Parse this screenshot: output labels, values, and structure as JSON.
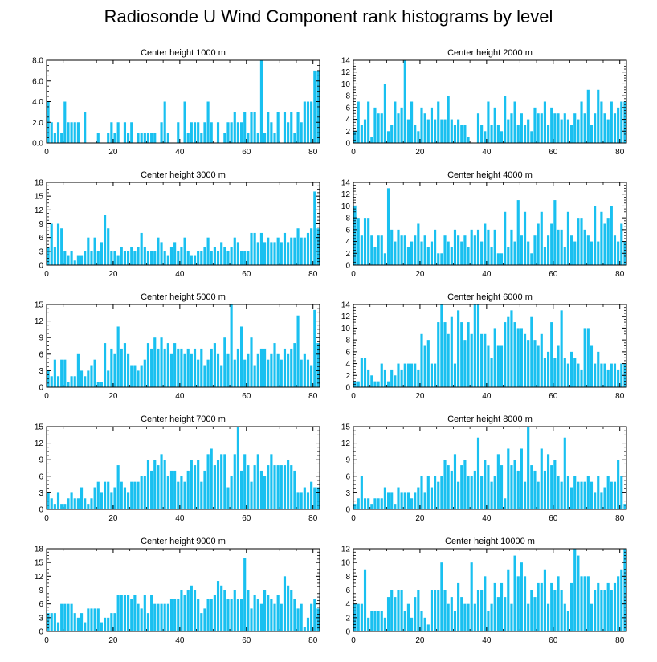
{
  "title": "Radiosonde U Wind Component rank histograms by level",
  "bar_color": "#19c0f0",
  "chart_data": [
    {
      "type": "bar",
      "title": "Center height 1000 m",
      "xlabel": "",
      "ylabel": "",
      "xlim": [
        0,
        82
      ],
      "ylim": [
        0,
        8
      ],
      "xticks": [
        "0",
        "20",
        "40",
        "60",
        "80"
      ],
      "yticks": [
        "0.0",
        "2.0",
        "4.0",
        "6.0",
        "8.0"
      ],
      "values": [
        4,
        2,
        1,
        2,
        1,
        4,
        2,
        2,
        2,
        2,
        0,
        3,
        0,
        0,
        0,
        1,
        0,
        0,
        1,
        2,
        1,
        2,
        0,
        2,
        1,
        2,
        0,
        1,
        1,
        1,
        1,
        1,
        1,
        0,
        2,
        4,
        1,
        0,
        0,
        2,
        0,
        4,
        1,
        2,
        2,
        2,
        1,
        2,
        4,
        2,
        0,
        2,
        0,
        1,
        2,
        2,
        3,
        2,
        2,
        3,
        1,
        3,
        3,
        1,
        8,
        1,
        3,
        2,
        1,
        3,
        0,
        3,
        2,
        3,
        1,
        3,
        2,
        4,
        4,
        4,
        7,
        7
      ]
    },
    {
      "type": "bar",
      "title": "Center height 2000 m",
      "xlabel": "",
      "ylabel": "",
      "xlim": [
        0,
        82
      ],
      "ylim": [
        0,
        14
      ],
      "xticks": [
        "0",
        "20",
        "40",
        "60",
        "80"
      ],
      "yticks": [
        "0",
        "2",
        "4",
        "6",
        "8",
        "10",
        "12",
        "14"
      ],
      "values": [
        2,
        7,
        3,
        4,
        7,
        1,
        6,
        5,
        5,
        10,
        2,
        3,
        7,
        5,
        6,
        14,
        4,
        7,
        3,
        2,
        6,
        5,
        4,
        6,
        4,
        7,
        4,
        4,
        8,
        4,
        3,
        4,
        3,
        3,
        1,
        0,
        0,
        5,
        3,
        2,
        7,
        3,
        6,
        3,
        2,
        8,
        4,
        5,
        7,
        3,
        5,
        3,
        4,
        2,
        6,
        5,
        5,
        7,
        3,
        6,
        5,
        5,
        4,
        5,
        4,
        3,
        5,
        4,
        7,
        5,
        9,
        3,
        5,
        9,
        7,
        5,
        4,
        7,
        5,
        6,
        7,
        7
      ]
    },
    {
      "type": "bar",
      "title": "Center height 3000 m",
      "xlabel": "",
      "ylabel": "",
      "xlim": [
        0,
        82
      ],
      "ylim": [
        0,
        18
      ],
      "xticks": [
        "0",
        "20",
        "40",
        "60",
        "80"
      ],
      "yticks": [
        "0",
        "3",
        "6",
        "9",
        "12",
        "15",
        "18"
      ],
      "values": [
        4,
        9,
        4,
        9,
        8,
        3,
        2,
        3,
        1,
        2,
        2,
        3,
        6,
        3,
        6,
        3,
        5,
        11,
        8,
        3,
        3,
        2,
        4,
        3,
        3,
        4,
        3,
        4,
        7,
        4,
        3,
        3,
        3,
        6,
        5,
        3,
        2,
        4,
        5,
        3,
        4,
        6,
        3,
        2,
        2,
        3,
        3,
        4,
        6,
        3,
        4,
        3,
        5,
        4,
        3,
        4,
        6,
        5,
        3,
        3,
        3,
        7,
        7,
        5,
        7,
        5,
        6,
        5,
        5,
        6,
        5,
        7,
        5,
        6,
        6,
        8,
        6,
        6,
        7,
        8,
        16,
        8
      ]
    },
    {
      "type": "bar",
      "title": "Center height 4000 m",
      "xlabel": "",
      "ylabel": "",
      "xlim": [
        0,
        82
      ],
      "ylim": [
        0,
        14
      ],
      "xticks": [
        "0",
        "20",
        "40",
        "60",
        "80"
      ],
      "yticks": [
        "0",
        "2",
        "4",
        "6",
        "8",
        "10",
        "12",
        "14"
      ],
      "values": [
        10,
        8,
        5,
        8,
        8,
        5,
        3,
        5,
        5,
        2,
        13,
        6,
        4,
        6,
        5,
        5,
        3,
        4,
        5,
        7,
        4,
        5,
        3,
        4,
        6,
        2,
        2,
        5,
        4,
        3,
        6,
        5,
        4,
        5,
        3,
        6,
        5,
        6,
        4,
        7,
        6,
        3,
        6,
        2,
        2,
        9,
        3,
        6,
        4,
        11,
        5,
        9,
        4,
        2,
        5,
        7,
        9,
        3,
        5,
        7,
        11,
        6,
        6,
        3,
        9,
        5,
        4,
        8,
        8,
        6,
        5,
        4,
        10,
        4,
        9,
        7,
        8,
        10,
        5,
        4,
        7,
        4
      ]
    },
    {
      "type": "bar",
      "title": "Center height 5000 m",
      "xlabel": "",
      "ylabel": "",
      "xlim": [
        0,
        82
      ],
      "ylim": [
        0,
        15
      ],
      "xticks": [
        "0",
        "20",
        "40",
        "60",
        "80"
      ],
      "yticks": [
        "0",
        "3",
        "6",
        "9",
        "12",
        "15"
      ],
      "values": [
        3,
        2,
        5,
        2,
        5,
        5,
        1,
        2,
        2,
        6,
        3,
        2,
        3,
        4,
        5,
        1,
        1,
        8,
        3,
        7,
        6,
        11,
        7,
        8,
        6,
        4,
        4,
        3,
        4,
        5,
        8,
        7,
        9,
        7,
        9,
        7,
        8,
        6,
        8,
        7,
        7,
        6,
        7,
        6,
        7,
        5,
        7,
        4,
        5,
        7,
        8,
        6,
        4,
        9,
        6,
        15,
        5,
        7,
        11,
        5,
        6,
        9,
        4,
        6,
        7,
        7,
        5,
        6,
        8,
        6,
        5,
        7,
        6,
        7,
        8,
        13,
        5,
        6,
        5,
        4,
        14,
        8
      ]
    },
    {
      "type": "bar",
      "title": "Center height 6000 m",
      "xlabel": "",
      "ylabel": "",
      "xlim": [
        0,
        82
      ],
      "ylim": [
        0,
        14
      ],
      "xticks": [
        "0",
        "20",
        "40",
        "60",
        "80"
      ],
      "yticks": [
        "0",
        "2",
        "4",
        "6",
        "8",
        "10",
        "12",
        "14"
      ],
      "values": [
        1,
        1,
        5,
        5,
        3,
        2,
        1,
        1,
        4,
        3,
        1,
        3,
        2,
        4,
        3,
        4,
        4,
        4,
        4,
        3,
        9,
        7,
        8,
        4,
        4,
        11,
        14,
        11,
        9,
        12,
        4,
        13,
        11,
        8,
        11,
        9,
        14,
        14,
        9,
        9,
        7,
        5,
        10,
        7,
        7,
        11,
        12,
        13,
        11,
        10,
        10,
        9,
        8,
        12,
        8,
        7,
        9,
        5,
        6,
        11,
        5,
        7,
        13,
        5,
        4,
        6,
        5,
        4,
        3,
        10,
        10,
        7,
        4,
        6,
        4,
        4,
        3,
        4,
        4,
        3,
        4,
        4
      ]
    },
    {
      "type": "bar",
      "title": "Center height 7000 m",
      "xlabel": "",
      "ylabel": "",
      "xlim": [
        0,
        82
      ],
      "ylim": [
        0,
        15
      ],
      "xticks": [
        "0",
        "20",
        "40",
        "60",
        "80"
      ],
      "yticks": [
        "0",
        "3",
        "6",
        "9",
        "12",
        "15"
      ],
      "values": [
        3,
        2,
        1,
        3,
        1,
        1,
        2,
        3,
        2,
        2,
        4,
        2,
        1,
        2,
        4,
        5,
        3,
        5,
        5,
        3,
        4,
        8,
        5,
        4,
        3,
        5,
        5,
        5,
        6,
        6,
        9,
        7,
        9,
        8,
        10,
        9,
        6,
        7,
        7,
        5,
        6,
        5,
        7,
        9,
        8,
        9,
        5,
        7,
        10,
        11,
        8,
        9,
        10,
        10,
        4,
        6,
        10,
        15,
        7,
        10,
        8,
        5,
        8,
        10,
        7,
        6,
        8,
        10,
        8,
        8,
        8,
        8,
        9,
        8,
        7,
        3,
        3,
        4,
        3,
        5,
        4,
        4
      ]
    },
    {
      "type": "bar",
      "title": "Center height 8000 m",
      "xlabel": "",
      "ylabel": "",
      "xlim": [
        0,
        82
      ],
      "ylim": [
        0,
        15
      ],
      "xticks": [
        "0",
        "20",
        "40",
        "60",
        "80"
      ],
      "yticks": [
        "0",
        "3",
        "6",
        "9",
        "12",
        "15"
      ],
      "values": [
        1,
        2,
        6,
        2,
        2,
        1,
        2,
        2,
        2,
        4,
        3,
        3,
        1,
        4,
        3,
        3,
        3,
        2,
        3,
        4,
        6,
        3,
        6,
        4,
        6,
        5,
        6,
        9,
        8,
        7,
        10,
        5,
        8,
        9,
        6,
        6,
        7,
        13,
        6,
        9,
        8,
        5,
        6,
        10,
        8,
        2,
        11,
        8,
        9,
        7,
        11,
        5,
        15,
        8,
        7,
        5,
        11,
        7,
        10,
        8,
        9,
        6,
        5,
        13,
        6,
        4,
        6,
        5,
        5,
        5,
        6,
        5,
        3,
        6,
        3,
        4,
        6,
        5,
        5,
        9,
        6,
        1
      ]
    },
    {
      "type": "bar",
      "title": "Center height 9000 m",
      "xlabel": "",
      "ylabel": "",
      "xlim": [
        0,
        82
      ],
      "ylim": [
        0,
        18
      ],
      "xticks": [
        "0",
        "20",
        "40",
        "60",
        "80"
      ],
      "yticks": [
        "0",
        "3",
        "6",
        "9",
        "12",
        "15",
        "18"
      ],
      "values": [
        4,
        4,
        4,
        2,
        6,
        6,
        6,
        6,
        4,
        3,
        4,
        2,
        5,
        5,
        5,
        5,
        2,
        3,
        3,
        4,
        4,
        8,
        8,
        8,
        8,
        7,
        8,
        6,
        5,
        8,
        4,
        8,
        6,
        6,
        6,
        6,
        6,
        7,
        7,
        7,
        9,
        8,
        9,
        10,
        9,
        7,
        4,
        5,
        7,
        7,
        8,
        11,
        10,
        9,
        7,
        7,
        9,
        7,
        7,
        16,
        9,
        5,
        8,
        7,
        6,
        9,
        8,
        7,
        6,
        8,
        6,
        12,
        10,
        9,
        7,
        5,
        6,
        1,
        3,
        6,
        7,
        5
      ]
    },
    {
      "type": "bar",
      "title": "Center height 10000 m",
      "xlabel": "",
      "ylabel": "",
      "xlim": [
        0,
        82
      ],
      "ylim": [
        0,
        12
      ],
      "xticks": [
        "0",
        "20",
        "40",
        "60",
        "80"
      ],
      "yticks": [
        "0",
        "2",
        "4",
        "6",
        "8",
        "10",
        "12"
      ],
      "values": [
        4,
        4,
        4,
        9,
        2,
        3,
        3,
        3,
        3,
        2,
        5,
        6,
        5,
        6,
        6,
        3,
        4,
        2,
        5,
        6,
        3,
        2,
        1,
        6,
        6,
        6,
        10,
        6,
        4,
        5,
        3,
        7,
        5,
        4,
        4,
        10,
        4,
        6,
        6,
        8,
        3,
        4,
        7,
        5,
        7,
        5,
        9,
        4,
        11,
        8,
        10,
        8,
        4,
        6,
        5,
        7,
        7,
        9,
        4,
        7,
        6,
        8,
        6,
        4,
        3,
        7,
        12,
        11,
        8,
        8,
        8,
        4,
        6,
        7,
        6,
        6,
        7,
        6,
        7,
        8,
        9,
        12
      ]
    }
  ]
}
